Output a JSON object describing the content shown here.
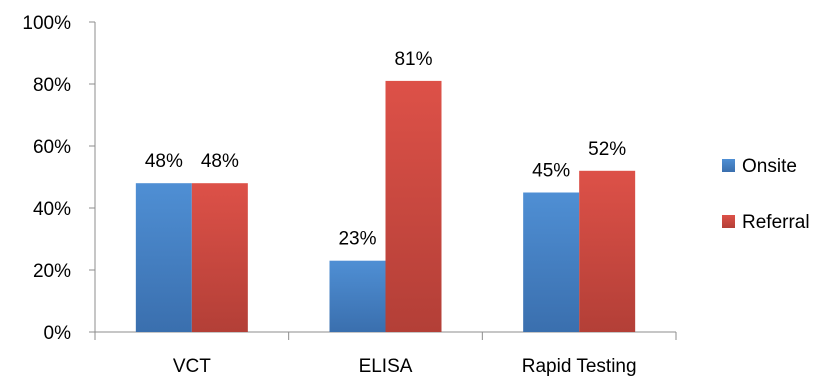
{
  "chart_data": {
    "type": "bar",
    "categories": [
      "VCT",
      "ELISA",
      "Rapid Testing"
    ],
    "series": [
      {
        "name": "Onsite",
        "values": [
          48,
          23,
          45
        ],
        "color": "#4a86c8",
        "labels": [
          "48%",
          "23%",
          "45%"
        ]
      },
      {
        "name": "Referral",
        "values": [
          48,
          81,
          52
        ],
        "color": "#d9534a",
        "labels": [
          "48%",
          "81%",
          "52%"
        ]
      }
    ],
    "ylim": [
      0,
      100
    ],
    "yticks": [
      0,
      20,
      40,
      60,
      80,
      100
    ],
    "ytick_labels": [
      "0%",
      "20%",
      "40%",
      "60%",
      "80%",
      "100%"
    ],
    "grid": false,
    "legend_position": "right",
    "title": "",
    "xlabel": "",
    "ylabel": ""
  }
}
